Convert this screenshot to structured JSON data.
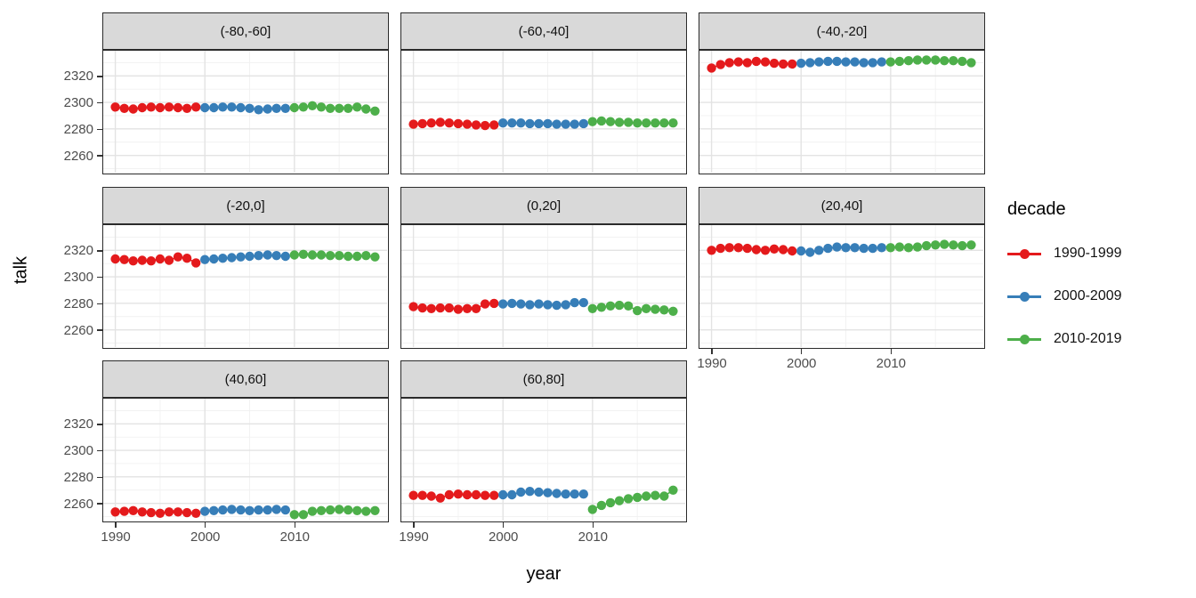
{
  "chart_data": {
    "type": "line",
    "title": "",
    "xlabel": "year",
    "ylabel": "talk",
    "xlim": [
      1988.5,
      2020.5
    ],
    "ylim": [
      2246,
      2340
    ],
    "x_ticks": [
      1990,
      2000,
      2010
    ],
    "y_ticks": [
      2260,
      2280,
      2300,
      2320
    ],
    "x_minor_ticks": [
      1995,
      2005,
      2015
    ],
    "y_minor_ticks": [
      2250,
      2270,
      2290,
      2310,
      2330
    ],
    "grid": true,
    "legend": {
      "title": "decade",
      "position": "right",
      "entries": [
        {
          "label": "1990-1999",
          "color": "#E41A1C"
        },
        {
          "label": "2000-2009",
          "color": "#377EB8"
        },
        {
          "label": "2010-2019",
          "color": "#4DAF4A"
        }
      ]
    },
    "panels": [
      {
        "facet": "(-80,-60]",
        "series": [
          {
            "decade": "1990-1999",
            "start_year": 1990,
            "values": [
              2296.5,
              2295.5,
              2295,
              2296,
              2296.5,
              2296,
              2296.5,
              2296,
              2295.5,
              2296.5
            ]
          },
          {
            "decade": "2000-2009",
            "start_year": 2000,
            "values": [
              2296,
              2296,
              2296.5,
              2296.5,
              2296,
              2295.5,
              2294.5,
              2295,
              2295.5,
              2295.5
            ]
          },
          {
            "decade": "2010-2019",
            "start_year": 2010,
            "values": [
              2296,
              2296.5,
              2297.5,
              2296.5,
              2295.5,
              2295.5,
              2295.5,
              2296.5,
              2295,
              2293.5
            ]
          }
        ]
      },
      {
        "facet": "(-60,-40]",
        "series": [
          {
            "decade": "1990-1999",
            "start_year": 1990,
            "values": [
              2283.5,
              2284,
              2284.5,
              2285,
              2284.5,
              2284,
              2283.5,
              2283,
              2282.5,
              2283
            ]
          },
          {
            "decade": "2000-2009",
            "start_year": 2000,
            "values": [
              2284.5,
              2284.5,
              2284.5,
              2284,
              2284,
              2284,
              2283.5,
              2283.5,
              2283.5,
              2284
            ]
          },
          {
            "decade": "2010-2019",
            "start_year": 2010,
            "values": [
              2285.5,
              2286,
              2285.5,
              2285,
              2285,
              2284.5,
              2284.5,
              2284.5,
              2284.5,
              2284.5
            ]
          }
        ]
      },
      {
        "facet": "(-40,-20]",
        "series": [
          {
            "decade": "1990-1999",
            "start_year": 1990,
            "values": [
              2326,
              2328.5,
              2330,
              2330.5,
              2330,
              2331,
              2330.5,
              2329.5,
              2329,
              2329
            ]
          },
          {
            "decade": "2000-2009",
            "start_year": 2000,
            "values": [
              2329.5,
              2330,
              2330.5,
              2331,
              2331,
              2330.5,
              2330.5,
              2330,
              2330,
              2330.5
            ]
          },
          {
            "decade": "2010-2019",
            "start_year": 2010,
            "values": [
              2330.5,
              2331,
              2331.5,
              2332,
              2332,
              2332,
              2331.5,
              2331.5,
              2331,
              2330
            ]
          }
        ]
      },
      {
        "facet": "(-20,0]",
        "series": [
          {
            "decade": "1990-1999",
            "start_year": 1990,
            "values": [
              2313.5,
              2313,
              2312,
              2312.5,
              2312,
              2313.5,
              2312.5,
              2315,
              2314,
              2310.5
            ]
          },
          {
            "decade": "2000-2009",
            "start_year": 2000,
            "values": [
              2313,
              2313.5,
              2314,
              2314.5,
              2315,
              2315.5,
              2316,
              2316.5,
              2316,
              2315.5
            ]
          },
          {
            "decade": "2010-2019",
            "start_year": 2010,
            "values": [
              2316.5,
              2317,
              2316.5,
              2316.5,
              2316,
              2316,
              2315.5,
              2315.5,
              2316,
              2315
            ]
          }
        ]
      },
      {
        "facet": "(0,20]",
        "series": [
          {
            "decade": "1990-1999",
            "start_year": 1990,
            "values": [
              2277.5,
              2276.5,
              2276,
              2276.5,
              2276.5,
              2275.5,
              2276,
              2276,
              2279.5,
              2280
            ]
          },
          {
            "decade": "2000-2009",
            "start_year": 2000,
            "values": [
              2279.5,
              2280,
              2279.5,
              2279,
              2279.5,
              2279,
              2278.5,
              2279,
              2280.5,
              2280.5
            ]
          },
          {
            "decade": "2010-2019",
            "start_year": 2010,
            "values": [
              2276,
              2277,
              2278,
              2278.5,
              2278,
              2274.5,
              2276,
              2275.5,
              2275,
              2274
            ]
          }
        ]
      },
      {
        "facet": "(20,40]",
        "series": [
          {
            "decade": "1990-1999",
            "start_year": 1990,
            "values": [
              2320,
              2321.5,
              2322,
              2322,
              2321.5,
              2320.5,
              2320,
              2321,
              2320.5,
              2319.5
            ]
          },
          {
            "decade": "2000-2009",
            "start_year": 2000,
            "values": [
              2319.5,
              2318.5,
              2320,
              2321.5,
              2322.5,
              2322,
              2322,
              2321.5,
              2321.5,
              2322
            ]
          },
          {
            "decade": "2010-2019",
            "start_year": 2010,
            "values": [
              2322,
              2322.5,
              2322,
              2322.5,
              2323.5,
              2324,
              2324.5,
              2324,
              2323.5,
              2324
            ]
          }
        ]
      },
      {
        "facet": "(40,60]",
        "series": [
          {
            "decade": "1990-1999",
            "start_year": 1990,
            "values": [
              2253.5,
              2254,
              2254.5,
              2253.5,
              2253,
              2252.5,
              2253.5,
              2253.5,
              2253,
              2252.5
            ]
          },
          {
            "decade": "2000-2009",
            "start_year": 2000,
            "values": [
              2254,
              2254.5,
              2255,
              2255.5,
              2255,
              2254.5,
              2255,
              2255,
              2255.5,
              2255
            ]
          },
          {
            "decade": "2010-2019",
            "start_year": 2010,
            "values": [
              2251.5,
              2251.5,
              2254,
              2254.5,
              2255,
              2255.5,
              2255,
              2254.5,
              2254,
              2254.5
            ]
          }
        ]
      },
      {
        "facet": "(60,80]",
        "series": [
          {
            "decade": "1990-1999",
            "start_year": 1990,
            "values": [
              2266,
              2266,
              2265.5,
              2264,
              2266.5,
              2267,
              2266.5,
              2266.5,
              2266,
              2266
            ]
          },
          {
            "decade": "2000-2009",
            "start_year": 2000,
            "values": [
              2266.5,
              2266.5,
              2268.5,
              2269,
              2268.5,
              2268,
              2267.5,
              2267,
              2267,
              2267
            ]
          },
          {
            "decade": "2010-2019",
            "start_year": 2010,
            "values": [
              2255.5,
              2258.5,
              2260.5,
              2262,
              2263.5,
              2264.5,
              2265.5,
              2266,
              2265.5,
              2270
            ]
          }
        ]
      }
    ]
  },
  "theme": {
    "background": "#FFFFFF",
    "strip_background": "#D9D9D9",
    "panel_border": "#2B2B2B",
    "grid_major": "#E3E3E3",
    "grid_minor": "#F1F1F1",
    "axis_text": "#4D4D4D",
    "text": "#000000"
  }
}
